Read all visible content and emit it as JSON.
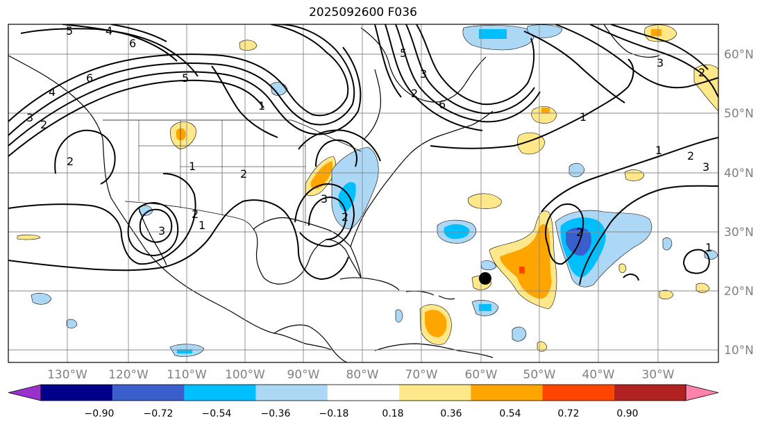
{
  "title": "2025092600 F036",
  "lat_labels": [
    "10°N",
    "20°N",
    "30°N",
    "40°N",
    "50°N",
    "60°N"
  ],
  "lon_labels": [
    "130°W",
    "120°W",
    "110°W",
    "100°W",
    "90°W",
    "80°W",
    "70°W",
    "60°W",
    "50°W",
    "40°W",
    "30°W"
  ],
  "colorbar": {
    "ticks": [
      "−0.90",
      "−0.72",
      "−0.54",
      "−0.36",
      "−0.18",
      "0.18",
      "0.36",
      "0.54",
      "0.72",
      "0.90"
    ],
    "colors": [
      "#9932cc",
      "#00008b",
      "#3a5fcd",
      "#00bfff",
      "#add8f5",
      "#ffffff",
      "#ffe88a",
      "#ffa500",
      "#ff4500",
      "#b22222",
      "#ff82ab"
    ]
  },
  "contour_labels": [
    "5",
    "4",
    "6",
    "6",
    "5",
    "4",
    "3",
    "2",
    "1",
    "2",
    "3",
    "2",
    "1",
    "2",
    "3",
    "2",
    "1",
    "6",
    "5",
    "2",
    "3",
    "1",
    "2",
    "2",
    "3",
    "1",
    "1",
    "2",
    "3"
  ],
  "center_marker": {
    "lat": 22,
    "lon": "60°W"
  }
}
